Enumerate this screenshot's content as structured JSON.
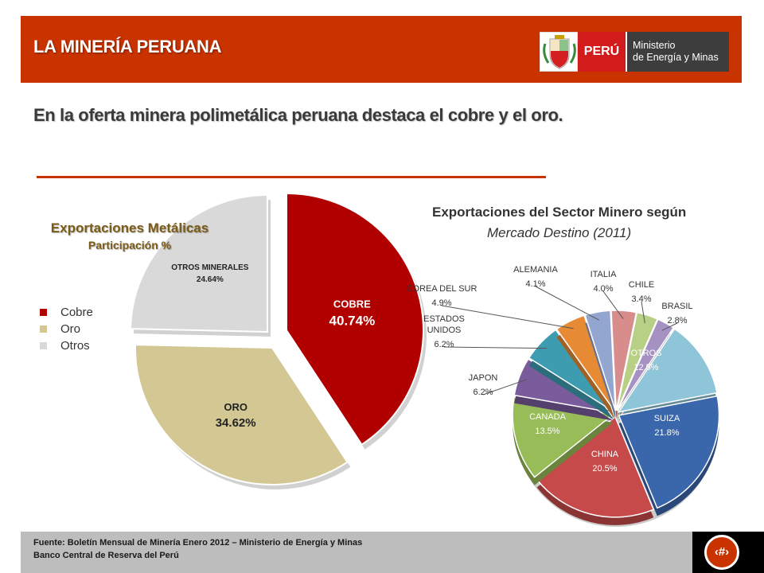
{
  "header": {
    "title": "LA MINERÍA PERUANA"
  },
  "logo": {
    "country": "PERÚ",
    "ministry_line1": "Ministerio",
    "ministry_line2": "de Energía y Minas"
  },
  "subtitle": "En la oferta minera polimetálica peruana destaca el cobre y el oro.",
  "chart_data": [
    {
      "type": "pie",
      "title": "Exportaciones Metálicas",
      "subtitle": "Participación %",
      "categories": [
        "COBRE",
        "ORO",
        "OTROS MINERALES"
      ],
      "values": [
        40.74,
        34.62,
        24.64
      ],
      "value_labels": [
        "40.74%",
        "34.62%",
        "24.64%"
      ],
      "colors": [
        "#b00000",
        "#d3c894",
        "#d9d9d9"
      ],
      "exploded": true,
      "legend": {
        "placement": "left",
        "entries": [
          {
            "label": "Cobre",
            "color": "#b00000"
          },
          {
            "label": "Oro",
            "color": "#d3c894"
          },
          {
            "label": "Otros",
            "color": "#d9d9d9"
          }
        ]
      }
    },
    {
      "type": "pie",
      "title": "Exportaciones del Sector Minero según",
      "subtitle": "Mercado Destino (2011)",
      "categories": [
        "SUIZA",
        "CHINA",
        "CANADA",
        "JAPON",
        "ESTADOS UNIDOS",
        "COREA DEL SUR",
        "ALEMANIA",
        "ITALIA",
        "CHILE",
        "BRASIL",
        "OTROS"
      ],
      "values": [
        21.8,
        20.5,
        13.5,
        6.2,
        6.2,
        4.9,
        4.1,
        4.0,
        3.4,
        2.8,
        12.5
      ],
      "value_labels": [
        "21.8%",
        "20.5%",
        "13.5%",
        "6.2%",
        "6.2%",
        "4.9%",
        "4.1%",
        "4.0%",
        "3.4%",
        "2.8%",
        "12.5%"
      ],
      "colors": [
        "#3a66ab",
        "#c74a4a",
        "#98bc58",
        "#7a5c9c",
        "#3e9cb0",
        "#e68a34",
        "#93a6cf",
        "#d88c8c",
        "#b8cf86",
        "#a592c2",
        "#8fc5d9"
      ]
    }
  ],
  "footer": {
    "line1": "Fuente: Boletín Mensual de Minería Enero 2012 – Ministerio de Energía y Minas",
    "line2": "Banco Central de Reserva del Perú",
    "page_number": "‹#›"
  }
}
